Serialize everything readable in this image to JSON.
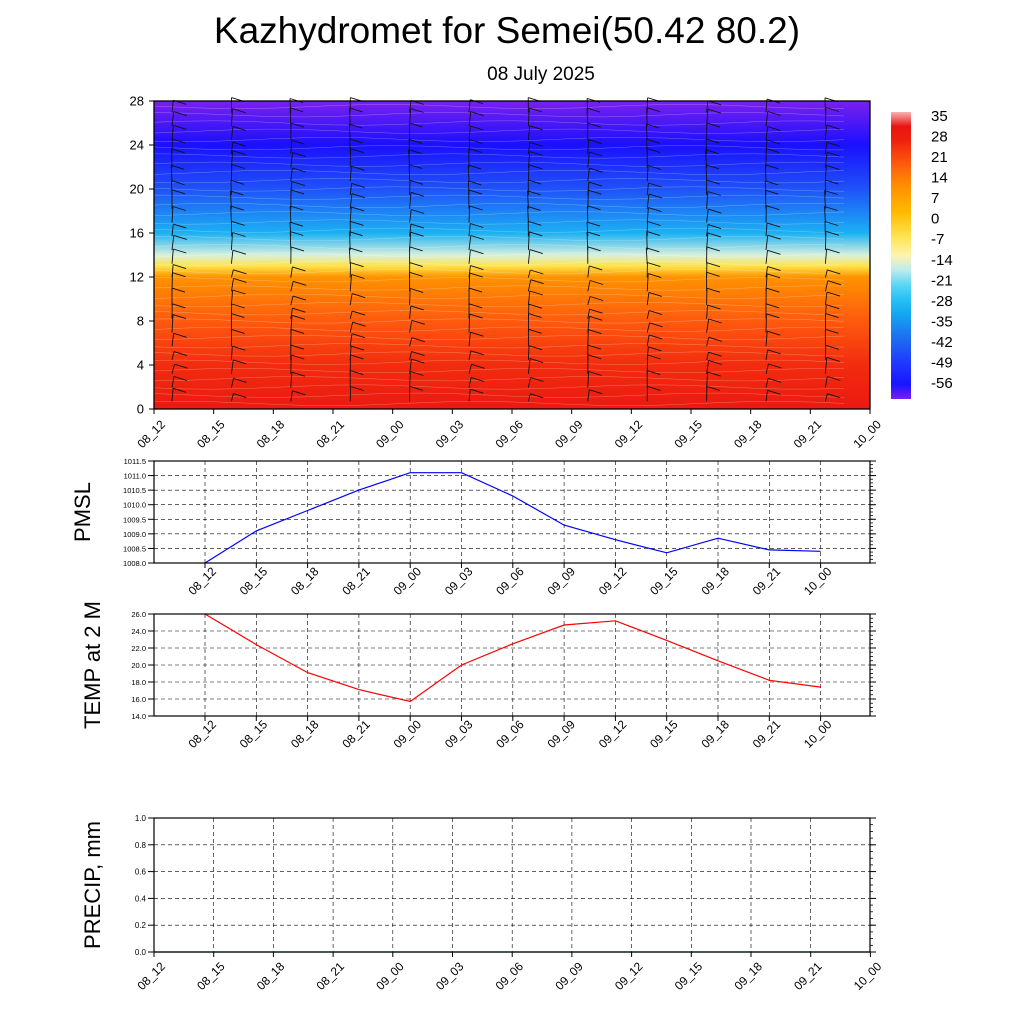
{
  "title": "Kazhydromet for Semei(50.42 80.2)",
  "subtitle": "08 July 2025",
  "colorbar": {
    "labels": [
      "35",
      "28",
      "21",
      "14",
      "7",
      "0",
      "-7",
      "-14",
      "-21",
      "-28",
      "-35",
      "-42",
      "-49",
      "-56"
    ]
  },
  "chart_data": [
    {
      "type": "heatmap",
      "name": "upper-air temperature and wind",
      "x_ticks": [
        "08_12",
        "08_15",
        "08_18",
        "08_21",
        "09_00",
        "09_03",
        "09_06",
        "09_09",
        "09_12",
        "09_15",
        "09_18",
        "09_21",
        "10_00"
      ],
      "y_ticks": [
        0,
        4,
        8,
        12,
        16,
        20,
        24,
        28
      ],
      "ylim": [
        0,
        28
      ],
      "value_range": [
        -56,
        35
      ],
      "level_profile": [
        [
          0,
          30
        ],
        [
          4,
          26
        ],
        [
          8,
          20
        ],
        [
          12,
          12
        ],
        [
          13,
          -4
        ],
        [
          14,
          -14
        ],
        [
          16,
          -28
        ],
        [
          20,
          -42
        ],
        [
          24,
          -54
        ],
        [
          28,
          -58
        ]
      ]
    },
    {
      "type": "line",
      "ylabel": "PMSL",
      "x": [
        "08_12",
        "08_15",
        "08_18",
        "08_21",
        "09_00",
        "09_03",
        "09_06",
        "09_09",
        "09_12",
        "09_15",
        "09_18",
        "09_21",
        "10_00"
      ],
      "values": [
        1008.0,
        1009.1,
        1009.8,
        1010.5,
        1011.1,
        1011.1,
        1010.3,
        1009.3,
        1008.8,
        1008.35,
        1008.85,
        1008.45,
        1008.4
      ],
      "y_ticks": [
        "1008.0",
        "1008.5",
        "1009.0",
        "1009.5",
        "1010.0",
        "1010.5",
        "1011.0",
        "1011.5"
      ],
      "ylim": [
        1008.0,
        1011.5
      ],
      "color": "#0000ff",
      "grid": true
    },
    {
      "type": "line",
      "ylabel": "TEMP at 2 M",
      "x": [
        "08_12",
        "08_15",
        "08_18",
        "08_21",
        "09_00",
        "09_03",
        "09_06",
        "09_09",
        "09_12",
        "09_15",
        "09_18",
        "09_21",
        "10_00"
      ],
      "values": [
        26.0,
        22.4,
        19.1,
        17.1,
        15.7,
        20.0,
        22.5,
        24.7,
        25.2,
        22.9,
        20.5,
        18.2,
        17.4
      ],
      "y_ticks": [
        "14.0",
        "16.0",
        "18.0",
        "20.0",
        "22.0",
        "24.0",
        "26.0"
      ],
      "ylim": [
        14.0,
        26.0
      ],
      "color": "#ff0000",
      "grid": true
    },
    {
      "type": "line",
      "ylabel": "PRECIP, mm",
      "x": [
        "08_12",
        "08_15",
        "08_18",
        "08_21",
        "09_00",
        "09_03",
        "09_06",
        "09_09",
        "09_12",
        "09_15",
        "09_18",
        "09_21",
        "10_00"
      ],
      "values": [
        0,
        0,
        0,
        0,
        0,
        0,
        0,
        0,
        0,
        0,
        0,
        0,
        0
      ],
      "y_ticks": [
        "0.0",
        "0.2",
        "0.4",
        "0.6",
        "0.8",
        "1.0"
      ],
      "ylim": [
        0.0,
        1.0
      ],
      "color": "#006400",
      "grid": true
    }
  ]
}
